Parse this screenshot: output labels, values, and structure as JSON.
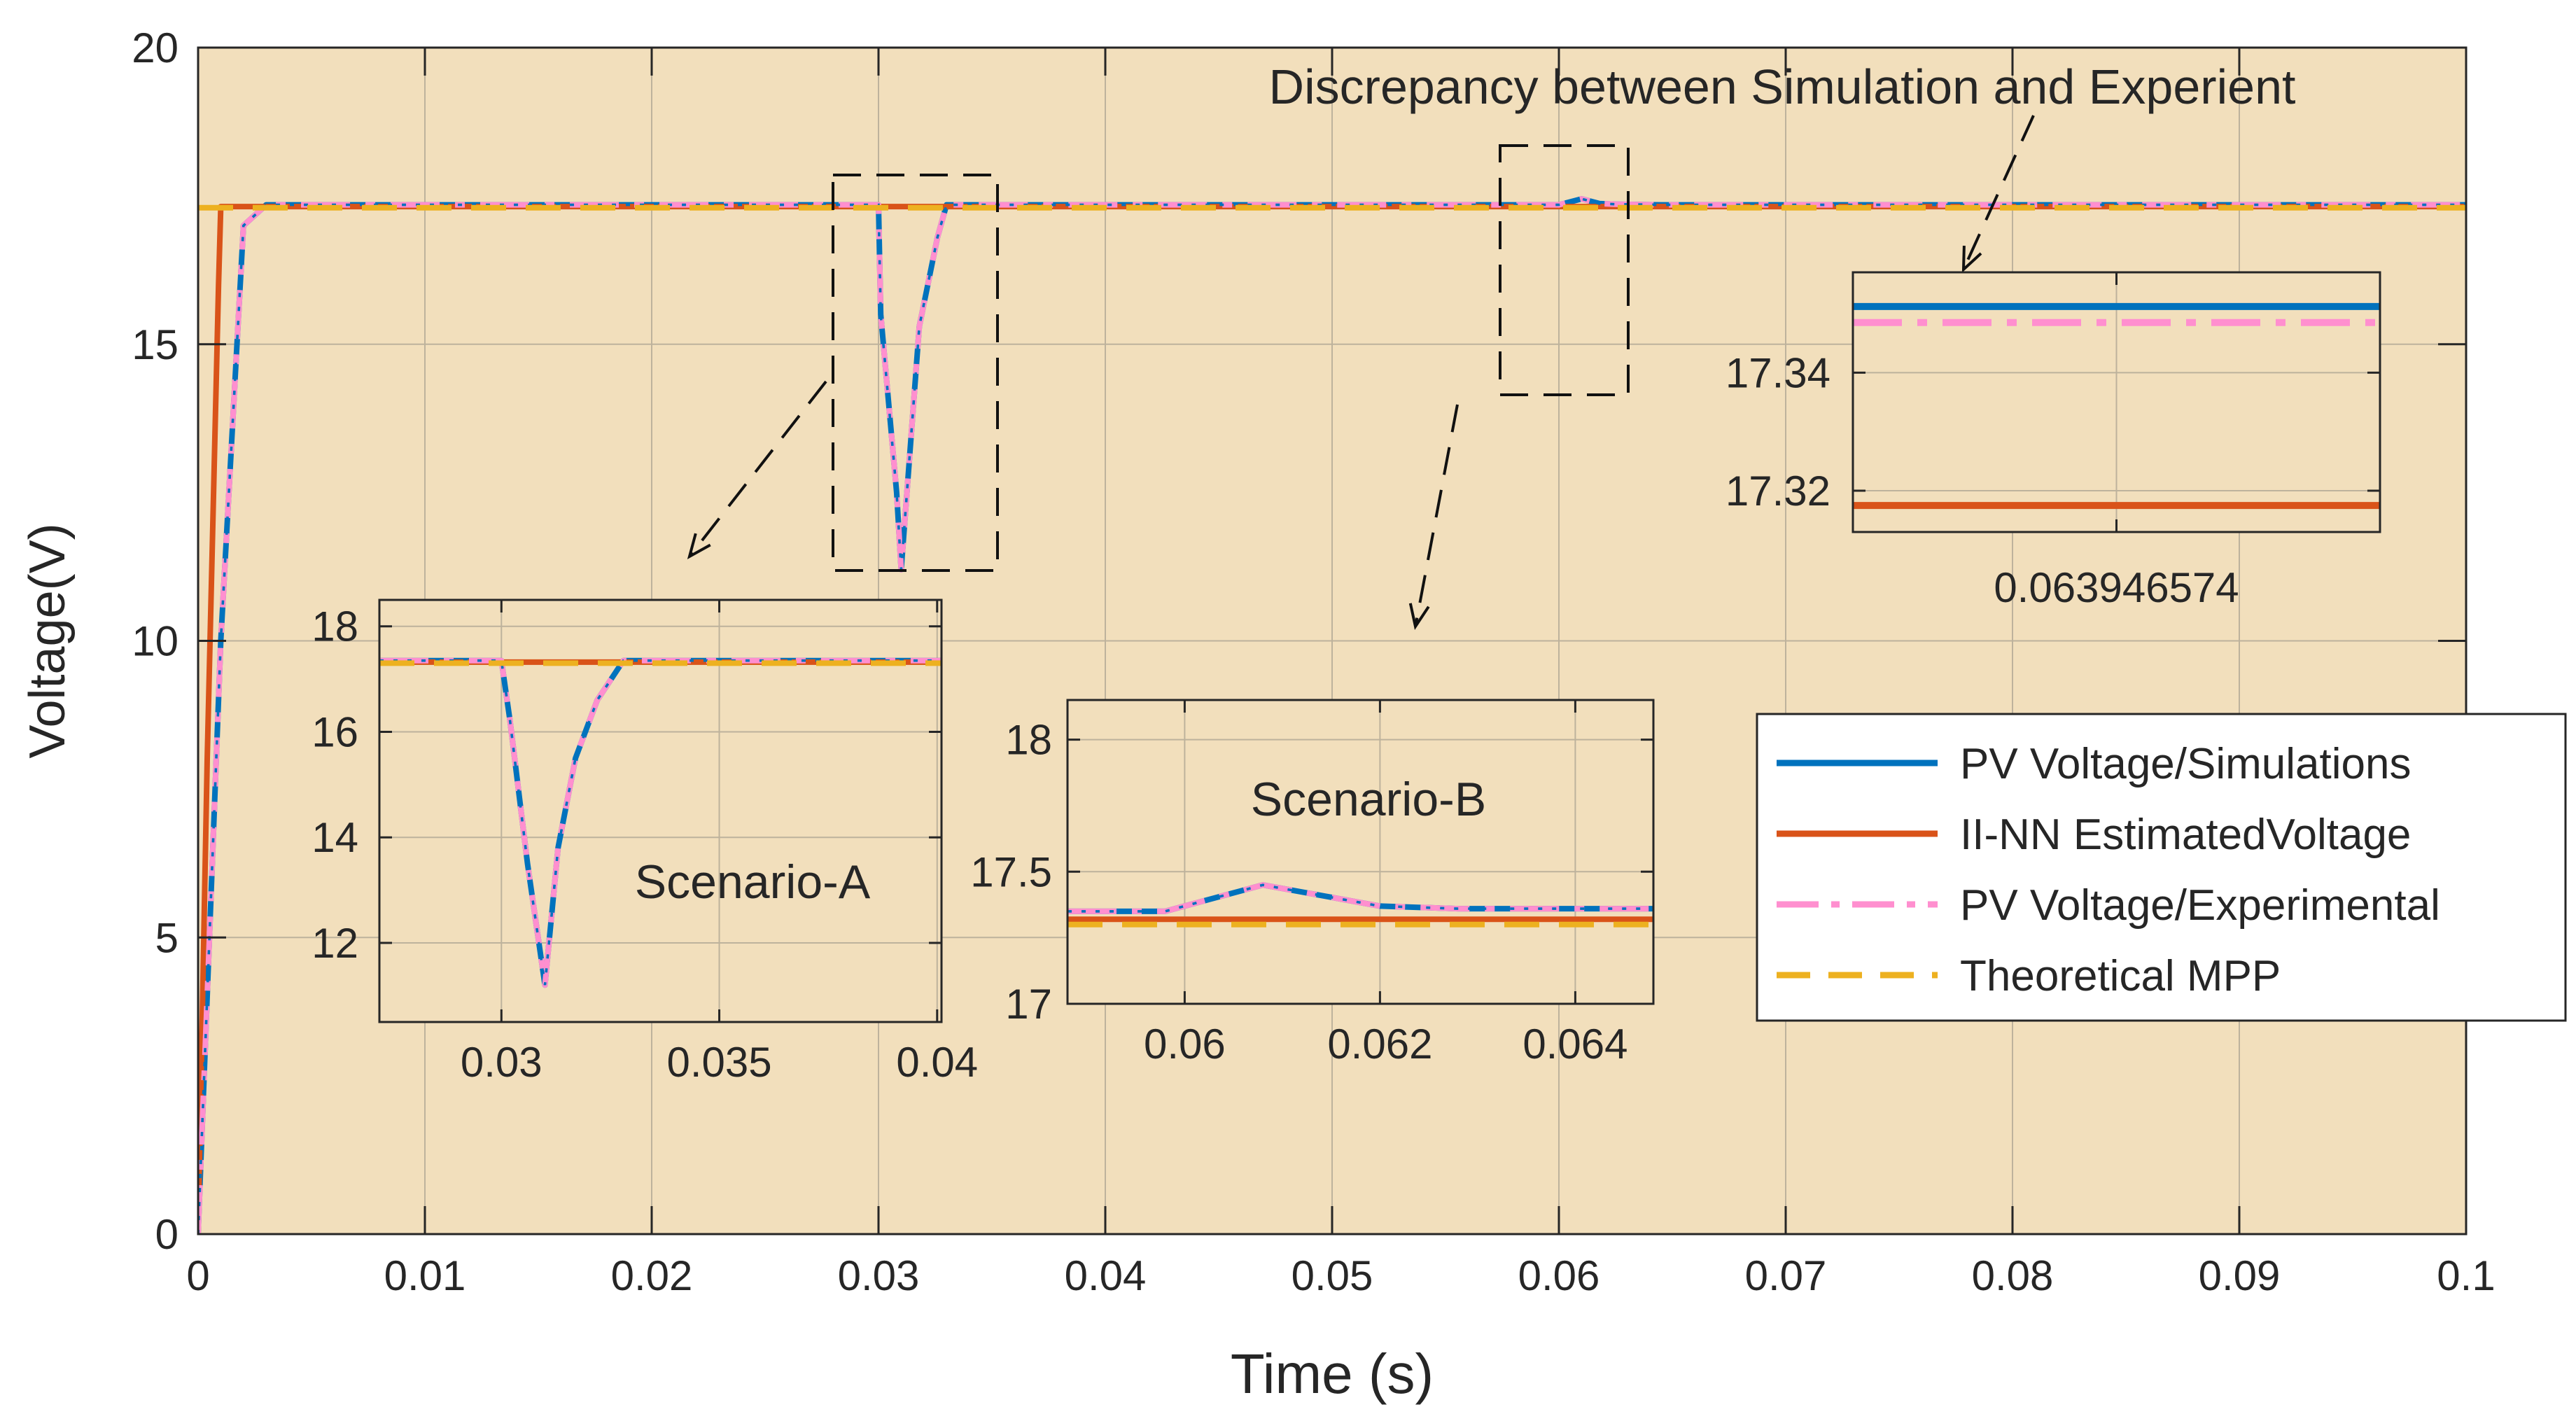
{
  "colors": {
    "plot_bg": "#f2dfbc",
    "grid": "#bdb29c",
    "simulation": "#0072bd",
    "estimated": "#d95319",
    "experimental": "#ff8fcf",
    "theoretical": "#edb120",
    "axis": "#262626"
  },
  "annotations": {
    "discrepancy": "Discrepancy between Simulation and Experient",
    "scenario_a": "Scenario-A",
    "scenario_b": "Scenario-B",
    "inset_c_xtick": "0.063946574"
  },
  "chart_data": [
    {
      "id": "main",
      "type": "line",
      "xlabel": "Time (s)",
      "ylabel": "Voltage(V)",
      "xlim": [
        0,
        0.1
      ],
      "ylim": [
        0,
        20
      ],
      "xticks": [
        0,
        0.01,
        0.02,
        0.03,
        0.04,
        0.05,
        0.06,
        0.07,
        0.08,
        0.09,
        0.1
      ],
      "xtick_labels": [
        "0",
        "0.01",
        "0.02",
        "0.03",
        "0.04",
        "0.05",
        "0.06",
        "0.07",
        "0.08",
        "0.09",
        "0.1"
      ],
      "yticks": [
        0,
        5,
        10,
        15,
        20
      ],
      "ytick_labels": [
        "0",
        "5",
        "10",
        "15",
        "20"
      ],
      "grid": true,
      "legend_position": "right",
      "series": [
        {
          "name": "PV Voltage/Simulations",
          "key": "simulation",
          "style": "solid",
          "x": [
            0,
            0.001,
            0.002,
            0.003,
            0.03,
            0.0301,
            0.0308,
            0.031,
            0.0318,
            0.0326,
            0.033,
            0.0335,
            0.06,
            0.061,
            0.0618,
            0.0625,
            0.0645,
            0.1
          ],
          "y": [
            0,
            10,
            17,
            17.35,
            17.35,
            15.5,
            12.5,
            11.2,
            15.3,
            16.8,
            17.35,
            17.35,
            17.35,
            17.45,
            17.37,
            17.36,
            17.35,
            17.35
          ]
        },
        {
          "name": "II-NN EstimatedVoltage",
          "key": "estimated",
          "style": "solid",
          "x": [
            0,
            0.0004,
            0.0009,
            0.001,
            0.1
          ],
          "y": [
            0,
            8,
            16,
            17.32,
            17.32
          ]
        },
        {
          "name": "PV Voltage/Experimental",
          "key": "experimental",
          "style": "dashdot",
          "x": [
            0,
            0.001,
            0.002,
            0.003,
            0.03,
            0.0301,
            0.0308,
            0.031,
            0.0318,
            0.0326,
            0.033,
            0.0335,
            0.06,
            0.061,
            0.0618,
            0.0625,
            0.0645,
            0.1
          ],
          "y": [
            0,
            10,
            17,
            17.35,
            17.35,
            15.5,
            12.5,
            11.2,
            15.3,
            16.8,
            17.35,
            17.35,
            17.35,
            17.45,
            17.37,
            17.36,
            17.35,
            17.35
          ]
        },
        {
          "name": "Theoretical MPP",
          "key": "theoretical",
          "style": "dashed",
          "x": [
            0,
            0.1
          ],
          "y": [
            17.3,
            17.3
          ]
        }
      ]
    },
    {
      "id": "inset_a",
      "type": "line",
      "xlim": [
        0.0272,
        0.0401
      ],
      "ylim": [
        10.5,
        18.5
      ],
      "xticks": [
        0.03,
        0.035,
        0.04
      ],
      "xtick_labels": [
        "0.03",
        "0.035",
        "0.04"
      ],
      "yticks": [
        12,
        14,
        16,
        18
      ],
      "ytick_labels": [
        "12",
        "14",
        "16",
        "18"
      ],
      "grid": true,
      "series": [
        {
          "key": "simulation",
          "style": "solid",
          "x": [
            0.0272,
            0.03,
            0.0302,
            0.0306,
            0.031,
            0.0313,
            0.0317,
            0.0322,
            0.0328,
            0.0401
          ],
          "y": [
            17.35,
            17.35,
            16.2,
            13.5,
            11.2,
            13.8,
            15.5,
            16.6,
            17.35,
            17.35
          ]
        },
        {
          "key": "estimated",
          "style": "solid",
          "x": [
            0.0272,
            0.0401
          ],
          "y": [
            17.32,
            17.32
          ]
        },
        {
          "key": "experimental",
          "style": "dashdot",
          "x": [
            0.0272,
            0.03,
            0.0302,
            0.0306,
            0.031,
            0.0313,
            0.0317,
            0.0322,
            0.0328,
            0.0401
          ],
          "y": [
            17.35,
            17.35,
            16.2,
            13.5,
            11.2,
            13.8,
            15.5,
            16.6,
            17.35,
            17.35
          ]
        },
        {
          "key": "theoretical",
          "style": "dashed",
          "x": [
            0.0272,
            0.0401
          ],
          "y": [
            17.3,
            17.3
          ]
        }
      ]
    },
    {
      "id": "inset_b",
      "type": "line",
      "xlim": [
        0.0588,
        0.0648
      ],
      "ylim": [
        17,
        18.15
      ],
      "xticks": [
        0.06,
        0.062,
        0.064
      ],
      "xtick_labels": [
        "0.06",
        "0.062",
        "0.064"
      ],
      "yticks": [
        17,
        17.5,
        18
      ],
      "ytick_labels": [
        "17",
        "17.5",
        "18"
      ],
      "grid": true,
      "series": [
        {
          "key": "simulation",
          "style": "solid",
          "x": [
            0.0588,
            0.0598,
            0.0608,
            0.062,
            0.0628,
            0.0648
          ],
          "y": [
            17.35,
            17.35,
            17.45,
            17.37,
            17.36,
            17.36
          ]
        },
        {
          "key": "estimated",
          "style": "solid",
          "x": [
            0.0588,
            0.0648
          ],
          "y": [
            17.32,
            17.32
          ]
        },
        {
          "key": "experimental",
          "style": "dashdot",
          "x": [
            0.0588,
            0.0598,
            0.0608,
            0.062,
            0.0628,
            0.0648
          ],
          "y": [
            17.35,
            17.35,
            17.45,
            17.37,
            17.36,
            17.36
          ]
        },
        {
          "key": "theoretical",
          "style": "dashed",
          "x": [
            0.0588,
            0.0648
          ],
          "y": [
            17.3,
            17.3
          ]
        }
      ]
    },
    {
      "id": "inset_c",
      "type": "line",
      "xlim": [
        0.0639465,
        0.0639467
      ],
      "ylim": [
        17.313,
        17.357
      ],
      "xticks": [
        0.0639466
      ],
      "xtick_labels": [
        "0.063946574"
      ],
      "yticks": [
        17.32,
        17.34
      ],
      "ytick_labels": [
        "17.32",
        "17.34"
      ],
      "grid": true,
      "series": [
        {
          "key": "simulation",
          "style": "solid",
          "x": [
            0.0639465,
            0.0639467
          ],
          "y": [
            17.3512,
            17.3512
          ]
        },
        {
          "key": "experimental",
          "style": "dashdot",
          "x": [
            0.0639465,
            0.0639467
          ],
          "y": [
            17.3485,
            17.3485
          ]
        },
        {
          "key": "estimated",
          "style": "solid",
          "x": [
            0.0639465,
            0.0639467
          ],
          "y": [
            17.3175,
            17.3175
          ]
        }
      ]
    }
  ]
}
